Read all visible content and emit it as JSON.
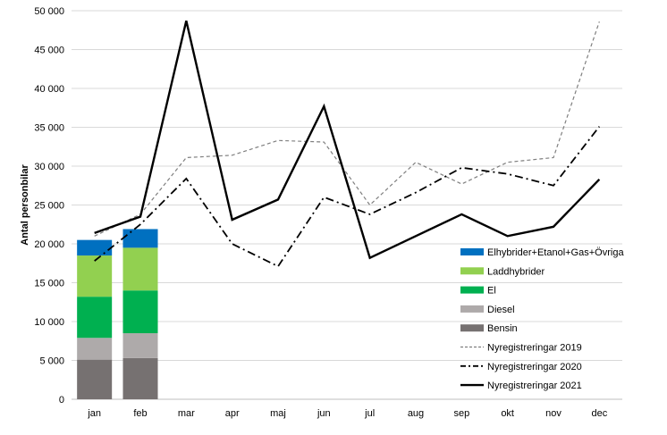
{
  "chart_data": {
    "type": "bar",
    "ylabel": "Antal personbilar",
    "ylim": [
      0,
      50000
    ],
    "yticks": [
      0,
      5000,
      10000,
      15000,
      20000,
      25000,
      30000,
      35000,
      40000,
      45000,
      50000
    ],
    "ytick_labels": [
      "0",
      "5 000",
      "10 000",
      "15 000",
      "20 000",
      "25 000",
      "30 000",
      "35 000",
      "40 000",
      "45 000",
      "50 000"
    ],
    "grid": "horizontal",
    "legend_position": "right",
    "categories": [
      "jan",
      "feb",
      "mar",
      "apr",
      "maj",
      "jun",
      "jul",
      "aug",
      "sep",
      "okt",
      "nov",
      "dec"
    ],
    "bar_series": [
      {
        "name": "Bensin",
        "color": "#767171",
        "values": [
          5100,
          5300
        ]
      },
      {
        "name": "Diesel",
        "color": "#AEAAAA",
        "values": [
          2800,
          3200
        ]
      },
      {
        "name": "El",
        "color": "#00B050",
        "values": [
          5300,
          5500
        ]
      },
      {
        "name": "Laddhybrider",
        "color": "#92D050",
        "values": [
          5300,
          5500
        ]
      },
      {
        "name": "Elhybrider+Etanol+Gas+Övriga",
        "color": "#0070C0",
        "values": [
          2000,
          2400
        ]
      }
    ],
    "line_series": [
      {
        "name": "Nyregistreringar 2019",
        "style": "dashed",
        "color": "#7F7F7F",
        "values": [
          21000,
          23800,
          31100,
          31400,
          33300,
          33100,
          25000,
          30500,
          27700,
          30500,
          31100,
          48600
        ]
      },
      {
        "name": "Nyregistreringar 2020",
        "style": "dashdot",
        "color": "#000000",
        "values": [
          17800,
          22500,
          28400,
          20000,
          17100,
          26000,
          23800,
          26600,
          29800,
          29000,
          27500,
          35100
        ]
      },
      {
        "name": "Nyregistreringar 2021",
        "style": "solid",
        "color": "#000000",
        "values": [
          21400,
          23500,
          48700,
          23100,
          25700,
          37700,
          18200,
          21000,
          23800,
          21000,
          22200,
          28300
        ]
      }
    ],
    "legend_order": [
      "Elhybrider+Etanol+Gas+Övriga",
      "Laddhybrider",
      "El",
      "Diesel",
      "Bensin",
      "Nyregistreringar 2019",
      "Nyregistreringar 2020",
      "Nyregistreringar 2021"
    ]
  }
}
